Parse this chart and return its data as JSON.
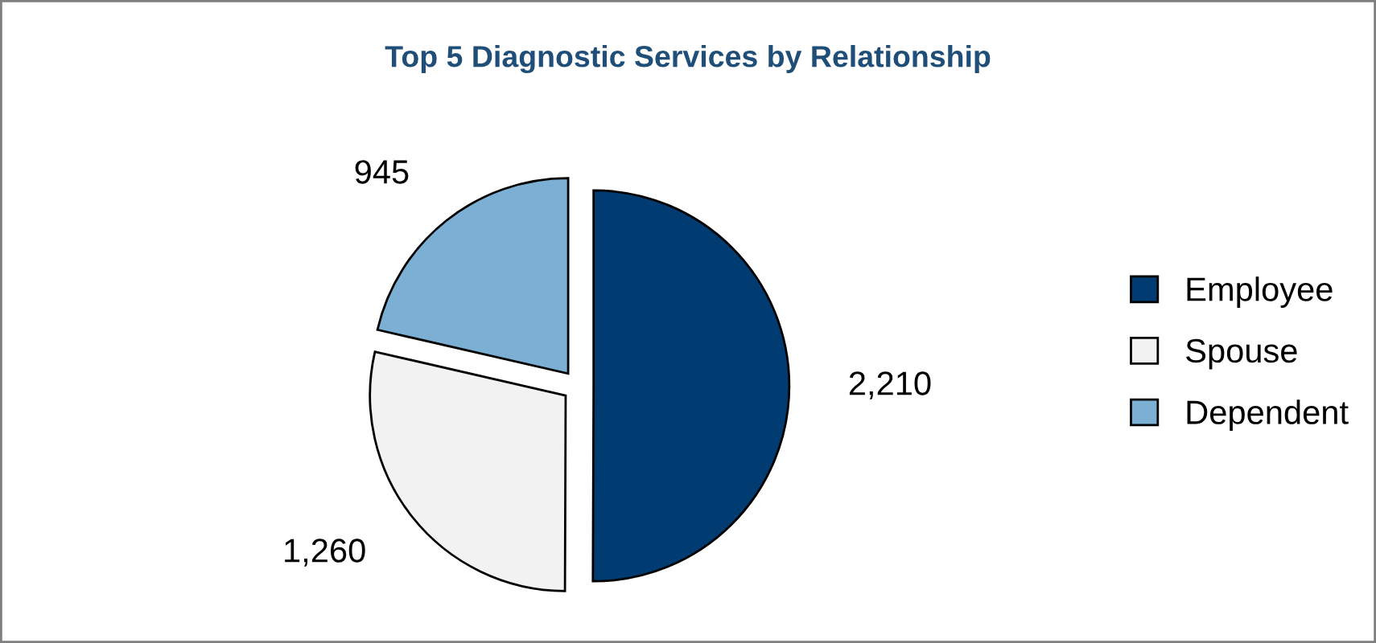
{
  "chart_data": {
    "type": "pie",
    "title": "Top 5 Diagnostic Services by Relationship",
    "categories": [
      "Employee",
      "Spouse",
      "Dependent"
    ],
    "values": [
      2210,
      1260,
      945
    ],
    "colors": [
      "#003b71",
      "#f2f2f2",
      "#7bafd4"
    ],
    "value_labels": [
      "2,210",
      "1,260",
      "945"
    ],
    "legend": "right"
  }
}
